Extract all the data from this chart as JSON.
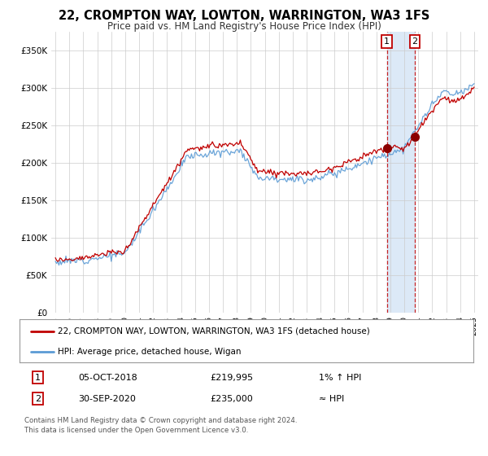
{
  "title": "22, CROMPTON WAY, LOWTON, WARRINGTON, WA3 1FS",
  "subtitle": "Price paid vs. HM Land Registry's House Price Index (HPI)",
  "legend_line1": "22, CROMPTON WAY, LOWTON, WARRINGTON, WA3 1FS (detached house)",
  "legend_line2": "HPI: Average price, detached house, Wigan",
  "annotation1_label": "1",
  "annotation1_date": "05-OCT-2018",
  "annotation1_price": "£219,995",
  "annotation1_hpi": "1% ↑ HPI",
  "annotation2_label": "2",
  "annotation2_date": "30-SEP-2020",
  "annotation2_price": "£235,000",
  "annotation2_hpi": "≈ HPI",
  "footer": "Contains HM Land Registry data © Crown copyright and database right 2024.\nThis data is licensed under the Open Government Licence v3.0.",
  "hpi_color": "#5b9bd5",
  "price_color": "#c00000",
  "marker_color": "#8b0000",
  "annotation_box_color": "#c00000",
  "dashed_line_color": "#c00000",
  "shade_color": "#dce9f7",
  "background_color": "#ffffff",
  "grid_color": "#cccccc",
  "yticks": [
    0,
    50000,
    100000,
    150000,
    200000,
    250000,
    300000,
    350000
  ],
  "ytick_labels": [
    "£0",
    "£50K",
    "£100K",
    "£150K",
    "£200K",
    "£250K",
    "£300K",
    "£350K"
  ],
  "xlim_start": 1994.7,
  "xlim_end": 2025.3,
  "ylim_min": 0,
  "ylim_max": 375000,
  "sale1_year": 2018.75,
  "sale1_price": 219995,
  "sale2_year": 2020.75,
  "sale2_price": 235000
}
